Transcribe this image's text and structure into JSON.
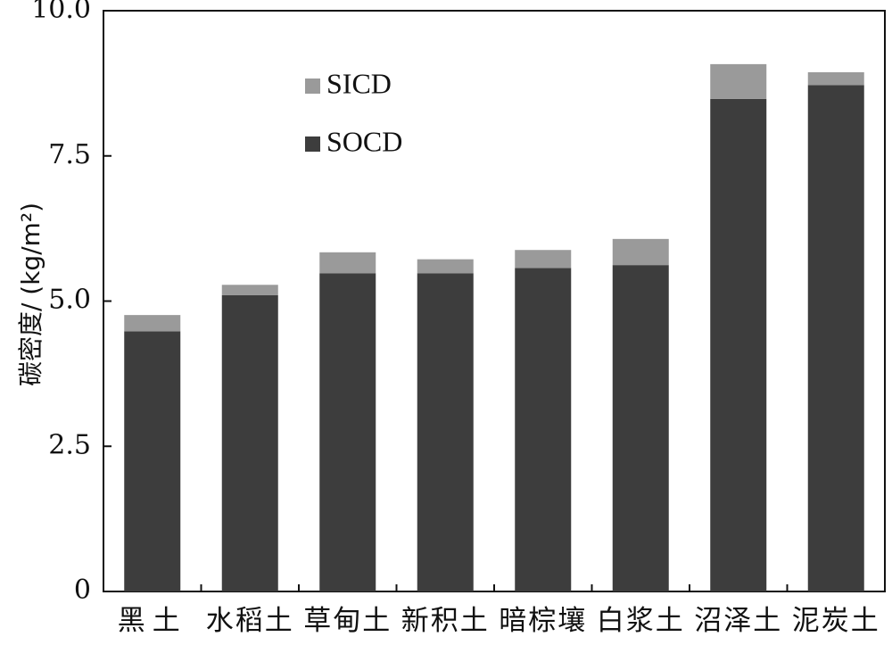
{
  "chart_data": {
    "type": "bar",
    "stacked": true,
    "categories": [
      "黑土",
      "水稻土",
      "草甸土",
      "新积土",
      "暗棕壤",
      "白浆土",
      "沼泽土",
      "泥炭土"
    ],
    "series": [
      {
        "name": "SOCD",
        "color": "#3d3d3d",
        "values": [
          4.48,
          5.1,
          5.48,
          5.48,
          5.57,
          5.62,
          8.48,
          8.72
        ]
      },
      {
        "name": "SICD",
        "color": "#9a9a9a",
        "values": [
          0.28,
          0.18,
          0.36,
          0.24,
          0.31,
          0.45,
          0.6,
          0.22
        ]
      }
    ],
    "ylabel": "碳密度/ (kg/m²)",
    "xlabel": "",
    "ylim": [
      0,
      10
    ],
    "yticks": [
      "0",
      "2.5",
      "5.0",
      "7.5",
      "10.0"
    ],
    "ytick_values": [
      0,
      2.5,
      5.0,
      7.5,
      10.0
    ],
    "legend": {
      "placement": "top-left",
      "order": [
        "SICD",
        "SOCD"
      ]
    },
    "grid": false
  }
}
